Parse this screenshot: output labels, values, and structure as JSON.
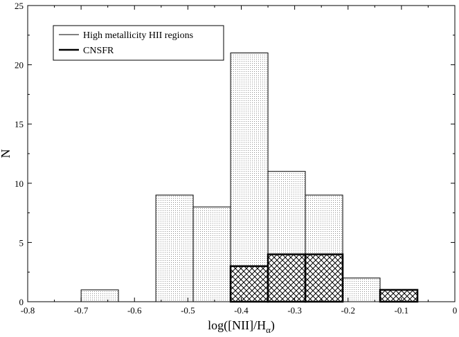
{
  "chart_data": {
    "type": "bar",
    "title": "",
    "xlabel": "log([NII]/H",
    "xlabel_sub": "α",
    "xlabel_close": ")",
    "ylabel": "N",
    "xlim": [
      -0.8,
      0
    ],
    "ylim": [
      0,
      25
    ],
    "x_ticks": [
      -0.8,
      -0.7,
      -0.6,
      -0.5,
      -0.4,
      -0.3,
      -0.2,
      -0.1,
      0
    ],
    "x_tick_labels": [
      "-0.8",
      "-0.7",
      "-0.6",
      "-0.5",
      "-0.4",
      "-0.3",
      "-0.2",
      "-0.1",
      "0"
    ],
    "y_ticks": [
      0,
      5,
      10,
      15,
      20,
      25
    ],
    "y_tick_labels": [
      "0",
      "5",
      "10",
      "15",
      "20",
      "25"
    ],
    "grid": false,
    "legend_position": "top-left",
    "series": [
      {
        "name": "High metallicity HII regions",
        "fill": "dotted",
        "bins": [
          {
            "x0": -0.7,
            "x1": -0.63,
            "value": 1
          },
          {
            "x0": -0.56,
            "x1": -0.49,
            "value": 9
          },
          {
            "x0": -0.49,
            "x1": -0.42,
            "value": 8
          },
          {
            "x0": -0.42,
            "x1": -0.35,
            "value": 21
          },
          {
            "x0": -0.35,
            "x1": -0.28,
            "value": 11
          },
          {
            "x0": -0.28,
            "x1": -0.21,
            "value": 9
          },
          {
            "x0": -0.21,
            "x1": -0.14,
            "value": 2
          },
          {
            "x0": -0.14,
            "x1": -0.07,
            "value": 1
          }
        ]
      },
      {
        "name": "CNSFR",
        "fill": "crosshatch",
        "bins": [
          {
            "x0": -0.42,
            "x1": -0.35,
            "value": 3
          },
          {
            "x0": -0.35,
            "x1": -0.28,
            "value": 4
          },
          {
            "x0": -0.28,
            "x1": -0.21,
            "value": 4
          },
          {
            "x0": -0.14,
            "x1": -0.07,
            "value": 1
          }
        ]
      }
    ]
  }
}
